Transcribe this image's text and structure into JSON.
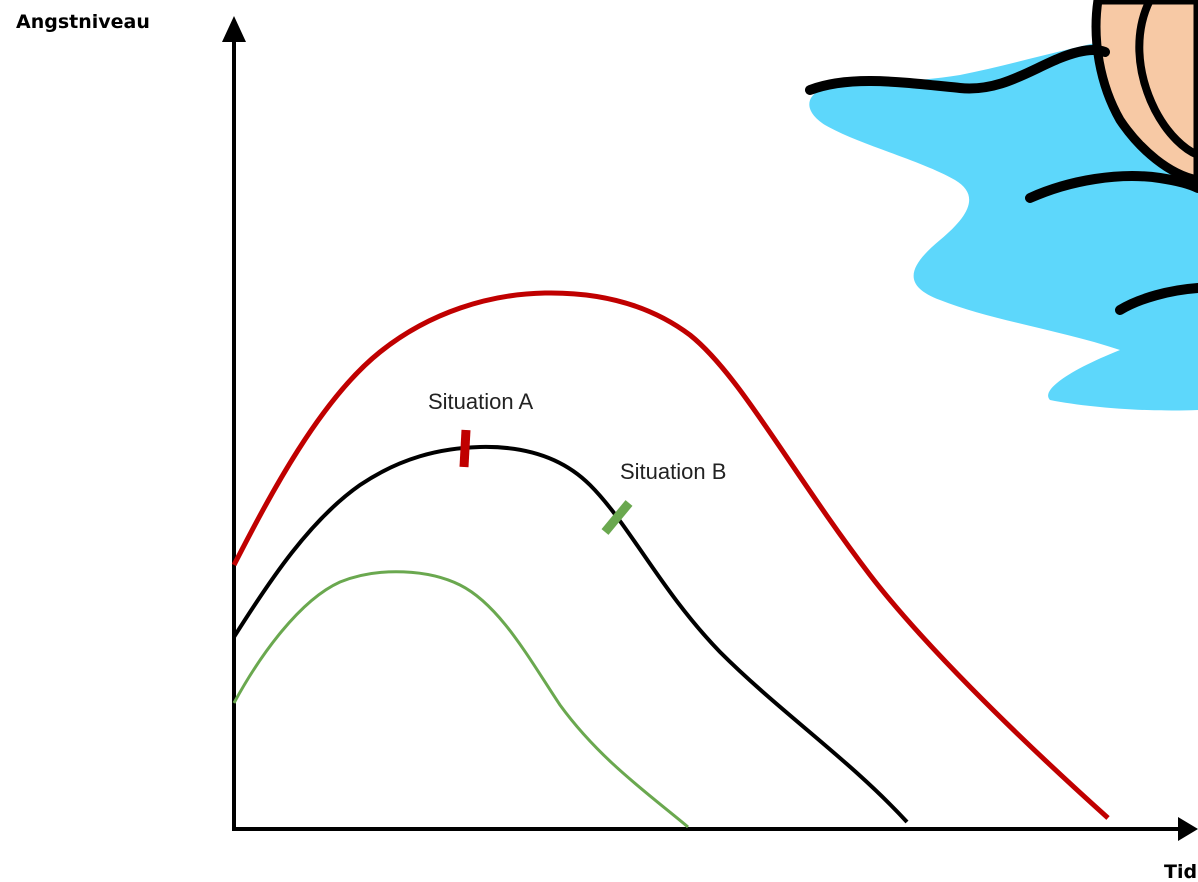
{
  "y_axis_label": "Angstniveau",
  "x_axis_label": "Tid",
  "markers": {
    "a_label": "Situation A",
    "b_label": "Situation B"
  },
  "colors": {
    "high_curve": "#c00000",
    "mid_curve": "#000000",
    "low_curve": "#6aa84f",
    "marker_a": "#c00000",
    "marker_b": "#6aa84f",
    "water": "#5dd7fb",
    "skin": "#f7c9a5",
    "outline": "#000000"
  },
  "illustration": {
    "icon": "person-in-water-icon"
  }
}
